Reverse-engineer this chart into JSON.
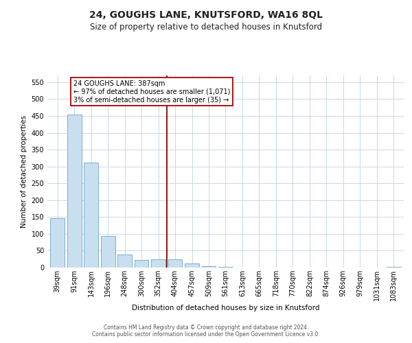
{
  "title": "24, GOUGHS LANE, KNUTSFORD, WA16 8QL",
  "subtitle": "Size of property relative to detached houses in Knutsford",
  "bar_labels": [
    "39sqm",
    "91sqm",
    "143sqm",
    "196sqm",
    "248sqm",
    "300sqm",
    "352sqm",
    "404sqm",
    "457sqm",
    "509sqm",
    "561sqm",
    "613sqm",
    "665sqm",
    "718sqm",
    "770sqm",
    "822sqm",
    "874sqm",
    "926sqm",
    "979sqm",
    "1031sqm",
    "1083sqm"
  ],
  "bar_values": [
    147,
    453,
    312,
    93,
    38,
    22,
    24,
    24,
    12,
    5,
    2,
    0,
    0,
    0,
    0,
    0,
    0,
    0,
    0,
    0,
    2
  ],
  "bar_color": "#c8dff0",
  "bar_edge_color": "#6ba3c8",
  "property_line_x": 6.5,
  "property_line_color": "#8b0000",
  "xlabel": "Distribution of detached houses by size in Knutsford",
  "ylabel": "Number of detached properties",
  "ylim": [
    0,
    570
  ],
  "yticks": [
    0,
    50,
    100,
    150,
    200,
    250,
    300,
    350,
    400,
    450,
    500,
    550
  ],
  "annotation_line1": "24 GOUGHS LANE: 387sqm",
  "annotation_line2": "← 97% of detached houses are smaller (1,071)",
  "annotation_line3": "3% of semi-detached houses are larger (35) →",
  "footer_line1": "Contains HM Land Registry data © Crown copyright and database right 2024.",
  "footer_line2": "Contains public sector information licensed under the Open Government Licence v3.0.",
  "background_color": "#ffffff",
  "grid_color": "#c8d8e8",
  "title_fontsize": 10,
  "subtitle_fontsize": 8.5,
  "axis_label_fontsize": 7.5,
  "tick_fontsize": 7,
  "annotation_fontsize": 7,
  "footer_fontsize": 5.5
}
